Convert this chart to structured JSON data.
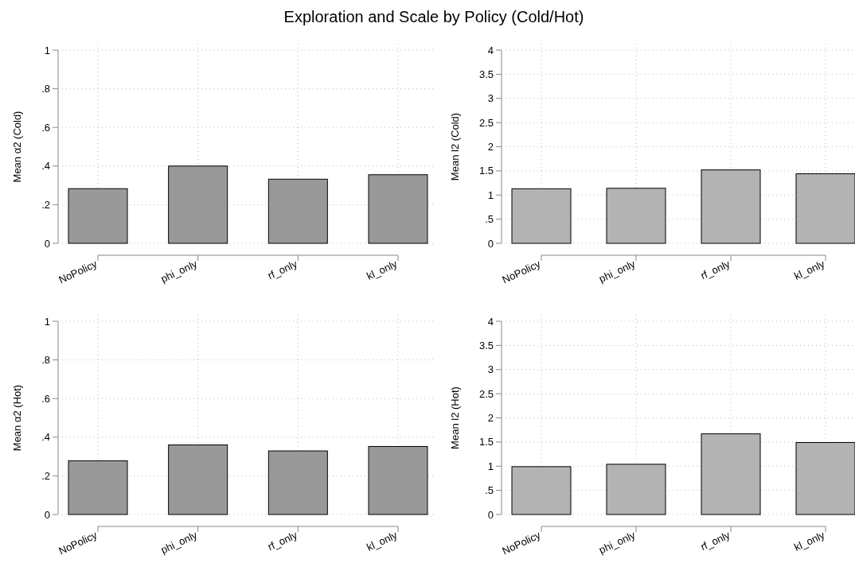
{
  "chart_data": [
    {
      "type": "bar",
      "title": "Exploration and Scale by Policy (Cold/Hot)",
      "ylabel": "Mean α2 (Cold)",
      "categories": [
        "NoPolicy",
        "phi_only",
        "rf_only",
        "kl_only"
      ],
      "values": [
        0.283,
        0.4,
        0.332,
        0.355
      ],
      "color": "#999999",
      "ylim": [
        0,
        1
      ],
      "yticks": [
        0,
        {
          "value": 0.2,
          "label": ".2"
        },
        {
          "value": 0.4,
          "label": ".4"
        },
        {
          "value": 0.6,
          "label": ".6"
        },
        {
          "value": 0.8,
          "label": ".8"
        },
        1
      ],
      "grid": true
    },
    {
      "type": "bar",
      "ylabel": "Mean l2 (Cold)",
      "categories": [
        "NoPolicy",
        "phi_only",
        "rf_only",
        "kl_only"
      ],
      "values": [
        1.13,
        1.14,
        1.52,
        1.44
      ],
      "color": "#b3b3b3",
      "ylim": [
        0,
        4
      ],
      "yticks": [
        0,
        {
          "value": 0.5,
          "label": ".5"
        },
        1,
        1.5,
        2,
        2.5,
        3,
        3.5,
        4
      ],
      "grid": true
    },
    {
      "type": "bar",
      "ylabel": "Mean α2 (Hot)",
      "categories": [
        "NoPolicy",
        "phi_only",
        "rf_only",
        "kl_only"
      ],
      "values": [
        0.278,
        0.36,
        0.329,
        0.352
      ],
      "color": "#999999",
      "ylim": [
        0,
        1
      ],
      "yticks": [
        0,
        {
          "value": 0.2,
          "label": ".2"
        },
        {
          "value": 0.4,
          "label": ".4"
        },
        {
          "value": 0.6,
          "label": ".6"
        },
        {
          "value": 0.8,
          "label": ".8"
        },
        1
      ],
      "grid": true
    },
    {
      "type": "bar",
      "ylabel": "Mean l2 (Hot)",
      "categories": [
        "NoPolicy",
        "phi_only",
        "rf_only",
        "kl_only"
      ],
      "values": [
        0.99,
        1.04,
        1.67,
        1.49
      ],
      "color": "#b3b3b3",
      "ylim": [
        0,
        4
      ],
      "yticks": [
        0,
        {
          "value": 0.5,
          "label": ".5"
        },
        1,
        1.5,
        2,
        2.5,
        3,
        3.5,
        4
      ],
      "grid": true
    }
  ]
}
